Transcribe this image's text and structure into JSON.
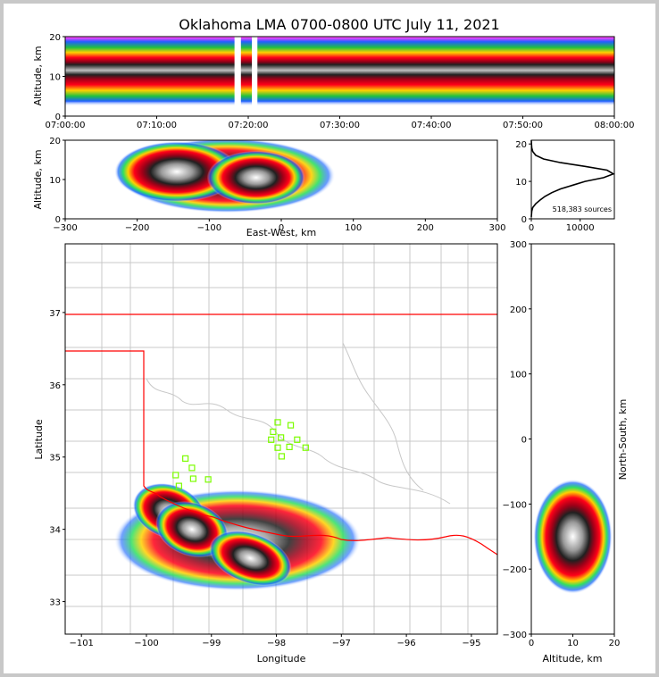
{
  "chart_data": [
    {
      "panel": "time-series",
      "type": "heatmap",
      "title": "Oklahoma LMA 0700-0800 UTC July 11, 2021",
      "xlabel": "",
      "ylabel": "Altitude, km",
      "xlim": [
        "07:00:00",
        "08:00:00"
      ],
      "ylim": [
        0,
        20
      ],
      "xticks": [
        "07:00:00",
        "07:10:00",
        "07:20:00",
        "07:30:00",
        "07:40:00",
        "07:50:00",
        "08:00:00"
      ],
      "yticks": [
        "0",
        "10",
        "20"
      ],
      "gaps_minutes": [
        [
          18.5,
          19.2
        ],
        [
          20.4,
          21.0
        ]
      ],
      "core_altitude_km": 11.5
    },
    {
      "panel": "east-west",
      "type": "heatmap",
      "xlabel": "East-West, km",
      "ylabel": "Altitude, km",
      "xlim": [
        -300,
        300
      ],
      "ylim": [
        0,
        20
      ],
      "xticks": [
        "−300",
        "−200",
        "−100",
        "0",
        "100",
        "200",
        "300"
      ],
      "yticks": [
        "0",
        "10",
        "20"
      ],
      "cores": [
        {
          "x_km": -145,
          "alt_km": 12,
          "intensity": "max"
        },
        {
          "x_km": -35,
          "alt_km": 10.5,
          "intensity": "high"
        }
      ]
    },
    {
      "panel": "altitude-histogram",
      "type": "line",
      "annotation": "518,383 sources",
      "xlim": [
        0,
        17000
      ],
      "ylim": [
        0,
        21
      ],
      "xticks": [
        "0",
        "10000"
      ],
      "yticks": [
        "0",
        "10",
        "20"
      ],
      "points": [
        [
          0,
          0.5
        ],
        [
          100,
          2
        ],
        [
          300,
          3
        ],
        [
          900,
          4
        ],
        [
          1800,
          5
        ],
        [
          2800,
          6
        ],
        [
          4200,
          7
        ],
        [
          6000,
          8
        ],
        [
          8500,
          9
        ],
        [
          11000,
          10
        ],
        [
          14800,
          11
        ],
        [
          16800,
          12
        ],
        [
          15500,
          13
        ],
        [
          11000,
          14
        ],
        [
          6000,
          15
        ],
        [
          2500,
          16
        ],
        [
          900,
          17
        ],
        [
          300,
          18
        ],
        [
          100,
          19
        ],
        [
          30,
          20
        ],
        [
          0,
          21
        ]
      ]
    },
    {
      "panel": "plan-view",
      "type": "heatmap",
      "xlabel": "Longitude",
      "ylabel": "Latitude",
      "xlim": [
        -101.25,
        -94.6
      ],
      "ylim": [
        32.55,
        37.95
      ],
      "xticks": [
        "−101",
        "−100",
        "−99",
        "−98",
        "−97",
        "−96",
        "−95"
      ],
      "yticks": [
        "33",
        "34",
        "35",
        "36",
        "37"
      ],
      "stations": [
        [
          -99.4,
          34.98
        ],
        [
          -99.3,
          34.85
        ],
        [
          -99.55,
          34.75
        ],
        [
          -99.28,
          34.7
        ],
        [
          -99.05,
          34.69
        ],
        [
          -99.5,
          34.6
        ],
        [
          -97.98,
          35.48
        ],
        [
          -97.78,
          35.44
        ],
        [
          -98.05,
          35.35
        ],
        [
          -97.93,
          35.27
        ],
        [
          -98.08,
          35.24
        ],
        [
          -97.68,
          35.24
        ],
        [
          -97.98,
          35.13
        ],
        [
          -97.8,
          35.14
        ],
        [
          -97.55,
          35.13
        ],
        [
          -97.92,
          35.01
        ]
      ],
      "cores": [
        {
          "lon": -99.65,
          "lat": 34.25,
          "intensity": "max"
        },
        {
          "lon": -99.3,
          "lat": 34.0,
          "intensity": "max"
        },
        {
          "lon": -98.4,
          "lat": 33.6,
          "intensity": "high"
        }
      ]
    },
    {
      "panel": "north-south",
      "type": "heatmap",
      "xlabel": "Altitude, km",
      "ylabel": "North-South, km",
      "xlim": [
        0,
        20
      ],
      "ylim": [
        -300,
        300
      ],
      "xticks": [
        "0",
        "10",
        "20"
      ],
      "yticks": [
        "−300",
        "−200",
        "−100",
        "0",
        "100",
        "200",
        "300"
      ],
      "core": {
        "alt_km": 10,
        "ns_km": -150
      }
    }
  ]
}
